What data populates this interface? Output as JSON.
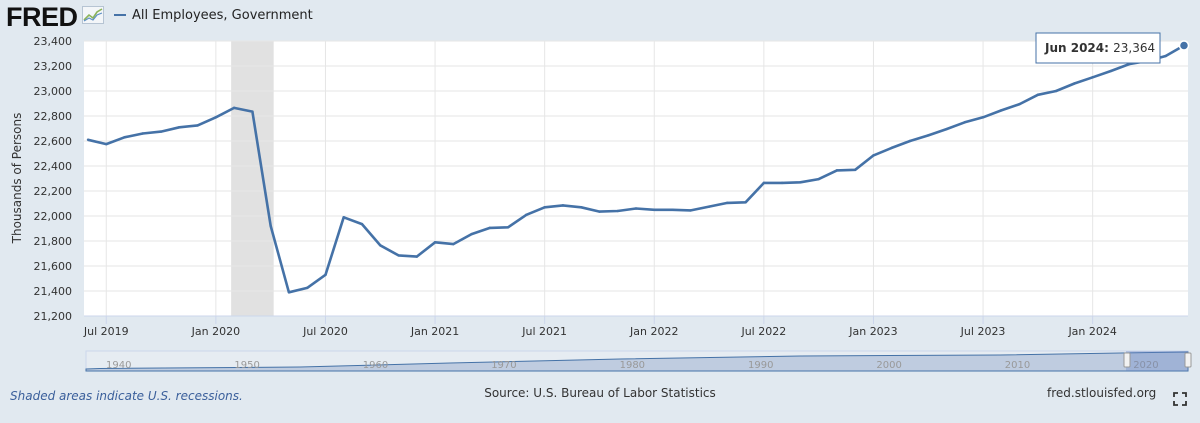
{
  "header": {
    "logo_text": "FRED",
    "series_title": "All Employees, Government"
  },
  "chart_data": {
    "type": "line",
    "title": "All Employees, Government",
    "ylabel": "Thousands of Persons",
    "xlabel": "",
    "ylim": [
      21200,
      23400
    ],
    "yticks": [
      21200,
      21400,
      21600,
      21800,
      22000,
      22200,
      22400,
      22600,
      22800,
      23000,
      23200,
      23400
    ],
    "ytick_labels": [
      "21,200",
      "21,400",
      "21,600",
      "21,800",
      "22,000",
      "22,200",
      "22,400",
      "22,600",
      "22,800",
      "23,000",
      "23,200",
      "23,400"
    ],
    "xrange": [
      "2019-06",
      "2024-06"
    ],
    "xticks": [
      "2019-07",
      "2020-01",
      "2020-07",
      "2021-01",
      "2021-07",
      "2022-01",
      "2022-07",
      "2023-01",
      "2023-07",
      "2024-01"
    ],
    "xtick_labels": [
      "Jul 2019",
      "Jan 2020",
      "Jul 2020",
      "Jan 2021",
      "Jul 2021",
      "Jan 2022",
      "Jul 2022",
      "Jan 2023",
      "Jul 2023",
      "Jan 2024"
    ],
    "grid": true,
    "recession": {
      "start": "2020-02",
      "end": "2020-04"
    },
    "series": [
      {
        "name": "All Employees, Government",
        "color": "#4572a7",
        "x": [
          "2019-06",
          "2019-07",
          "2019-08",
          "2019-09",
          "2019-10",
          "2019-11",
          "2019-12",
          "2020-01",
          "2020-02",
          "2020-03",
          "2020-04",
          "2020-05",
          "2020-06",
          "2020-07",
          "2020-08",
          "2020-09",
          "2020-10",
          "2020-11",
          "2020-12",
          "2021-01",
          "2021-02",
          "2021-03",
          "2021-04",
          "2021-05",
          "2021-06",
          "2021-07",
          "2021-08",
          "2021-09",
          "2021-10",
          "2021-11",
          "2021-12",
          "2022-01",
          "2022-02",
          "2022-03",
          "2022-04",
          "2022-05",
          "2022-06",
          "2022-07",
          "2022-08",
          "2022-09",
          "2022-10",
          "2022-11",
          "2022-12",
          "2023-01",
          "2023-02",
          "2023-03",
          "2023-04",
          "2023-05",
          "2023-06",
          "2023-07",
          "2023-08",
          "2023-09",
          "2023-10",
          "2023-11",
          "2023-12",
          "2024-01",
          "2024-02",
          "2024-03",
          "2024-04",
          "2024-05",
          "2024-06"
        ],
        "values": [
          22610,
          22575,
          22630,
          22660,
          22675,
          22710,
          22725,
          22790,
          22865,
          22835,
          21920,
          21390,
          21425,
          21530,
          21990,
          21935,
          21765,
          21685,
          21675,
          21790,
          21775,
          21855,
          21905,
          21910,
          22010,
          22070,
          22085,
          22070,
          22035,
          22040,
          22060,
          22050,
          22050,
          22045,
          22075,
          22105,
          22110,
          22265,
          22265,
          22270,
          22295,
          22365,
          22370,
          22485,
          22545,
          22600,
          22645,
          22695,
          22750,
          22790,
          22845,
          22895,
          22970,
          23000,
          23060,
          23110,
          23160,
          23215,
          23240,
          23280,
          23364
        ]
      }
    ],
    "tooltip": {
      "label": "Jun 2024:",
      "value": "23,364"
    }
  },
  "navigator": {
    "year_labels": [
      "1940",
      "1950",
      "1960",
      "1970",
      "1980",
      "1990",
      "2000",
      "2010",
      "2020"
    ]
  },
  "footer": {
    "note": "Shaded areas indicate U.S. recessions.",
    "source": "Source: U.S. Bureau of Labor Statistics",
    "link": "fred.stlouisfed.org"
  }
}
